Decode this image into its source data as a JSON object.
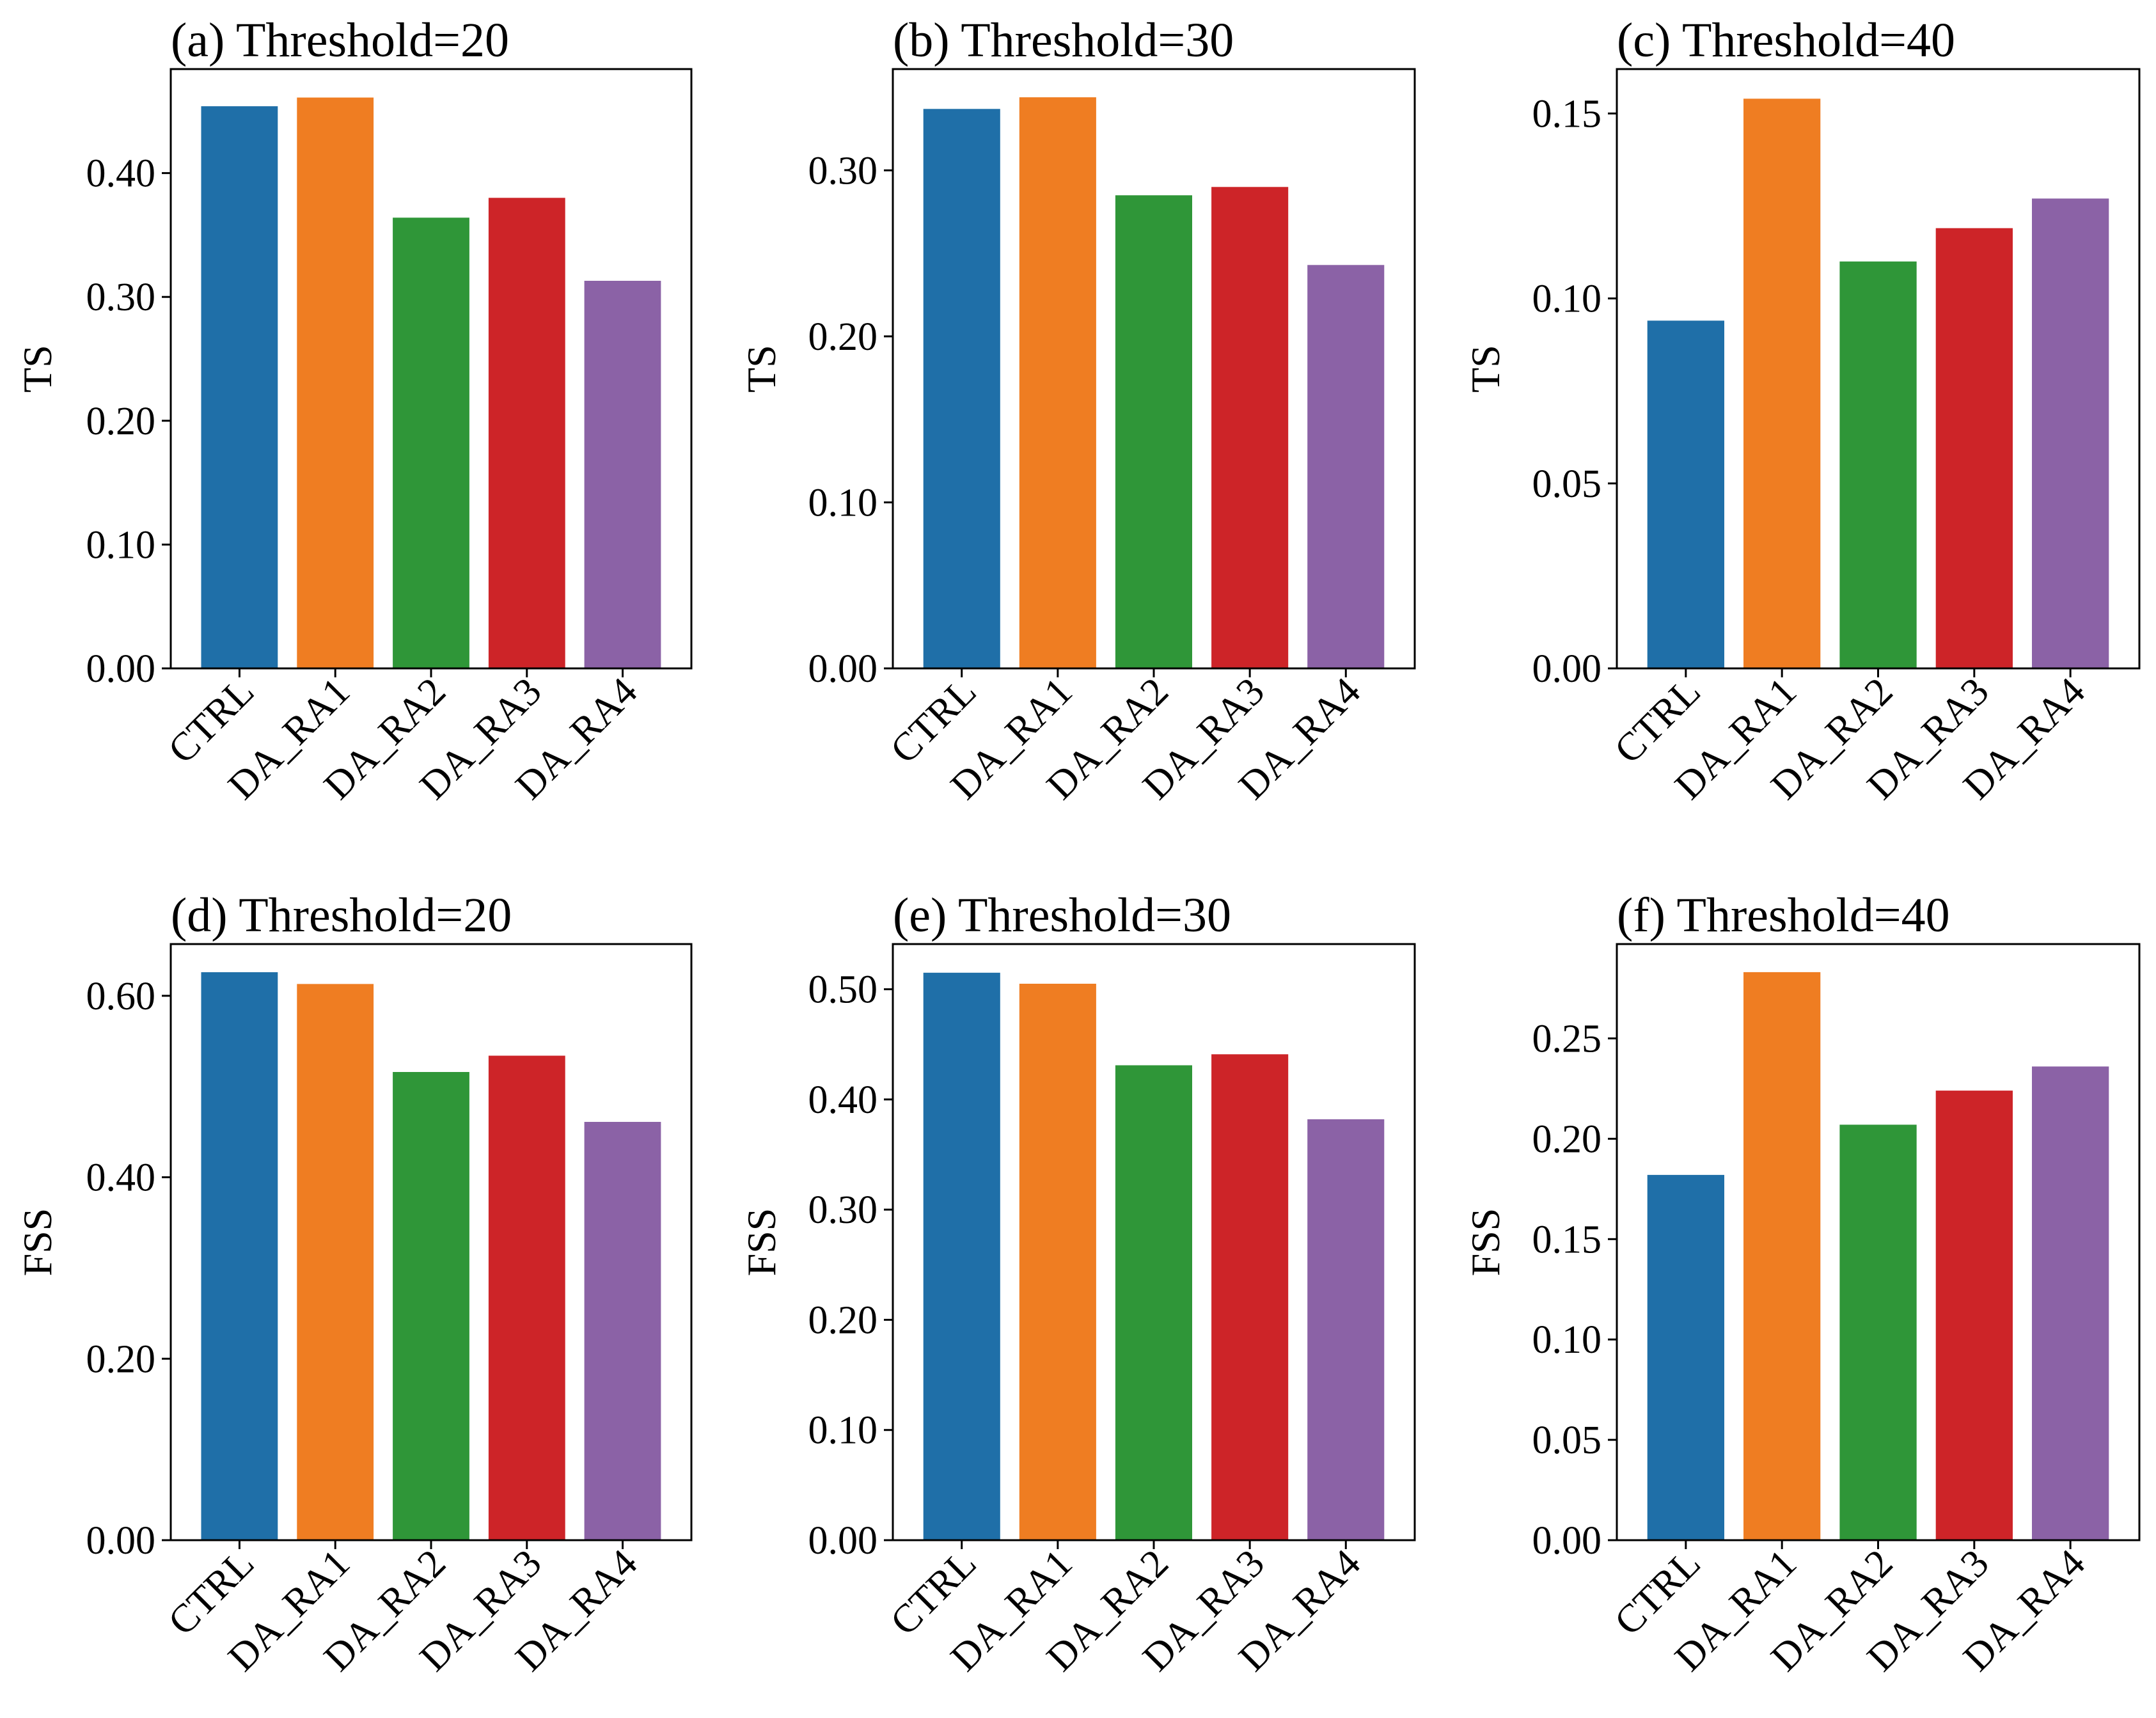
{
  "chart_data": [
    {
      "type": "bar",
      "title": "(a) Threshold=20",
      "ylabel": "TS",
      "xlabel": "",
      "categories": [
        "CTRL",
        "DA_RA1",
        "DA_RA2",
        "DA_RA3",
        "DA_RA4"
      ],
      "values": [
        0.454,
        0.461,
        0.364,
        0.38,
        0.313
      ],
      "colors": [
        "#1f6fa8",
        "#ef7d22",
        "#2f9638",
        "#cd2428",
        "#8b62a6"
      ],
      "ylim": [
        0,
        0.484
      ],
      "yticks": [
        0.0,
        0.1,
        0.2,
        0.3,
        0.4
      ],
      "ytick_labels": [
        "0.00",
        "0.10",
        "0.20",
        "0.30",
        "0.40"
      ],
      "grid": false,
      "legend": "none"
    },
    {
      "type": "bar",
      "title": "(b) Threshold=30",
      "ylabel": "TS",
      "xlabel": "",
      "categories": [
        "CTRL",
        "DA_RA1",
        "DA_RA2",
        "DA_RA3",
        "DA_RA4"
      ],
      "values": [
        0.337,
        0.344,
        0.285,
        0.29,
        0.243
      ],
      "colors": [
        "#1f6fa8",
        "#ef7d22",
        "#2f9638",
        "#cd2428",
        "#8b62a6"
      ],
      "ylim": [
        0,
        0.361
      ],
      "yticks": [
        0.0,
        0.1,
        0.2,
        0.3
      ],
      "ytick_labels": [
        "0.00",
        "0.10",
        "0.20",
        "0.30"
      ],
      "grid": false,
      "legend": "none"
    },
    {
      "type": "bar",
      "title": "(c) Threshold=40",
      "ylabel": "TS",
      "xlabel": "",
      "categories": [
        "CTRL",
        "DA_RA1",
        "DA_RA2",
        "DA_RA3",
        "DA_RA4"
      ],
      "values": [
        0.094,
        0.154,
        0.11,
        0.119,
        0.127
      ],
      "colors": [
        "#1f6fa8",
        "#ef7d22",
        "#2f9638",
        "#cd2428",
        "#8b62a6"
      ],
      "ylim": [
        0,
        0.162
      ],
      "yticks": [
        0.0,
        0.05,
        0.1,
        0.15
      ],
      "ytick_labels": [
        "0.00",
        "0.05",
        "0.10",
        "0.15"
      ],
      "grid": false,
      "legend": "none"
    },
    {
      "type": "bar",
      "title": "(d) Threshold=20",
      "ylabel": "FSS",
      "xlabel": "",
      "categories": [
        "CTRL",
        "DA_RA1",
        "DA_RA2",
        "DA_RA3",
        "DA_RA4"
      ],
      "values": [
        0.626,
        0.613,
        0.516,
        0.534,
        0.461
      ],
      "colors": [
        "#1f6fa8",
        "#ef7d22",
        "#2f9638",
        "#cd2428",
        "#8b62a6"
      ],
      "ylim": [
        0,
        0.657
      ],
      "yticks": [
        0.0,
        0.2,
        0.4,
        0.6
      ],
      "ytick_labels": [
        "0.00",
        "0.20",
        "0.40",
        "0.60"
      ],
      "grid": false,
      "legend": "none"
    },
    {
      "type": "bar",
      "title": "(e) Threshold=30",
      "ylabel": "FSS",
      "xlabel": "",
      "categories": [
        "CTRL",
        "DA_RA1",
        "DA_RA2",
        "DA_RA3",
        "DA_RA4"
      ],
      "values": [
        0.515,
        0.505,
        0.431,
        0.441,
        0.382
      ],
      "colors": [
        "#1f6fa8",
        "#ef7d22",
        "#2f9638",
        "#cd2428",
        "#8b62a6"
      ],
      "ylim": [
        0,
        0.541
      ],
      "yticks": [
        0.0,
        0.1,
        0.2,
        0.3,
        0.4,
        0.5
      ],
      "ytick_labels": [
        "0.00",
        "0.10",
        "0.20",
        "0.30",
        "0.40",
        "0.50"
      ],
      "grid": false,
      "legend": "none"
    },
    {
      "type": "bar",
      "title": "(f) Threshold=40",
      "ylabel": "FSS",
      "xlabel": "",
      "categories": [
        "CTRL",
        "DA_RA1",
        "DA_RA2",
        "DA_RA3",
        "DA_RA4"
      ],
      "values": [
        0.182,
        0.283,
        0.207,
        0.224,
        0.236
      ],
      "colors": [
        "#1f6fa8",
        "#ef7d22",
        "#2f9638",
        "#cd2428",
        "#8b62a6"
      ],
      "ylim": [
        0,
        0.297
      ],
      "yticks": [
        0.0,
        0.05,
        0.1,
        0.15,
        0.2,
        0.25
      ],
      "ytick_labels": [
        "0.00",
        "0.05",
        "0.10",
        "0.15",
        "0.20",
        "0.25"
      ],
      "grid": false,
      "legend": "none"
    }
  ]
}
